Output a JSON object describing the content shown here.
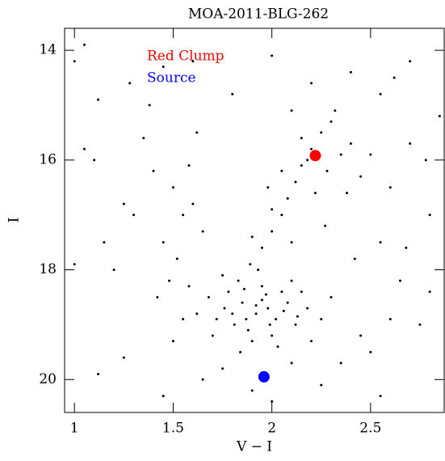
{
  "chart_data": {
    "type": "scatter",
    "title": "MOA-2011-BLG-262",
    "xlabel": "V − I",
    "ylabel": "I",
    "xlim": [
      0.95,
      2.873
    ],
    "ylim": [
      20.6,
      13.6
    ],
    "xticks": [
      1,
      1.5,
      2,
      2.5
    ],
    "yticks": [
      14,
      16,
      18,
      20
    ],
    "legend": "upper left",
    "series": [
      {
        "color": "#000000",
        "x": [
          1.85,
          1.92,
          1.78,
          2.02,
          1.95,
          1.88,
          2.08,
          1.72,
          1.98,
          1.83,
          2.12,
          1.9,
          1.76,
          2.05,
          1.93,
          1.68,
          2.18,
          1.87,
          2.0,
          1.81,
          1.95,
          2.1,
          1.75,
          1.62,
          2.25,
          1.89,
          2.03,
          1.84,
          2.15,
          1.97,
          1.7,
          2.2,
          1.92,
          1.8,
          2.06,
          1.58,
          2.3,
          1.86,
          1.99,
          2.13,
          1.95,
          2.0,
          2.05,
          2.08,
          2.12,
          2.15,
          2.2,
          2.25,
          2.3,
          2.35,
          2.18,
          2.28,
          2.1,
          1.9,
          2.4,
          2.32,
          2.45,
          2.22,
          2.0,
          2.15,
          2.38,
          2.05,
          2.5,
          2.27,
          2.42,
          1.98,
          1.5,
          1.55,
          1.45,
          1.6,
          1.52,
          1.4,
          1.35,
          1.65,
          1.48,
          1.58,
          1.3,
          1.42,
          1.25,
          1.62,
          1.38,
          1.55,
          1.5,
          1.2,
          1.15,
          1.1,
          1.05,
          1.0,
          1.0,
          1.05,
          1.12,
          1.28,
          1.45,
          1.6,
          2.6,
          2.7,
          2.55,
          2.65,
          2.8,
          2.75,
          2.5,
          2.6,
          2.85,
          2.45,
          2.7,
          2.55,
          2.8,
          2.35,
          2.62,
          2.4,
          2.2,
          2.0,
          1.8,
          2.1,
          2.78,
          2.68,
          1.75,
          2.1,
          1.9,
          2.25,
          1.65,
          1.45,
          2.55,
          1.25,
          1.12,
          2.0
        ],
        "values": [
          18.6,
          18.8,
          18.4,
          18.9,
          18.3,
          19.1,
          18.6,
          18.9,
          18.7,
          18.2,
          19.0,
          19.3,
          18.7,
          18.4,
          18.0,
          18.5,
          18.7,
          18.9,
          19.2,
          19.0,
          18.55,
          18.2,
          18.1,
          18.8,
          18.9,
          17.9,
          19.4,
          19.5,
          18.4,
          18.45,
          19.2,
          19.3,
          18.65,
          18.8,
          18.75,
          18.3,
          18.5,
          18.35,
          19.0,
          18.85,
          17.6,
          17.3,
          17.0,
          16.7,
          16.4,
          16.1,
          15.8,
          15.5,
          15.3,
          15.9,
          16.0,
          16.2,
          17.5,
          17.4,
          15.7,
          15.1,
          16.3,
          16.6,
          16.9,
          15.6,
          16.6,
          16.2,
          15.9,
          17.2,
          17.8,
          16.5,
          16.5,
          17.0,
          17.5,
          16.8,
          17.8,
          16.2,
          15.6,
          17.3,
          18.2,
          16.1,
          17.0,
          18.5,
          16.8,
          15.5,
          15.0,
          18.9,
          19.3,
          18.0,
          17.5,
          16.0,
          15.8,
          17.9,
          14.2,
          13.9,
          14.9,
          14.6,
          14.3,
          14.2,
          16.5,
          15.7,
          14.8,
          18.2,
          17.0,
          19.0,
          19.5,
          18.9,
          15.2,
          19.2,
          14.2,
          17.5,
          18.4,
          19.7,
          14.5,
          14.4,
          14.6,
          14.1,
          14.8,
          15.1,
          16.0,
          17.6,
          19.8,
          19.7,
          20.2,
          20.1,
          20.0,
          20.3,
          20.3,
          19.6,
          19.9,
          20.4
        ]
      },
      {
        "name": "Red Clump",
        "color": "#ff0000",
        "x": [
          2.22
        ],
        "values": [
          15.92
        ]
      },
      {
        "name": "Source",
        "color": "#0000ff",
        "x": [
          1.96
        ],
        "values": [
          19.95
        ]
      }
    ]
  }
}
